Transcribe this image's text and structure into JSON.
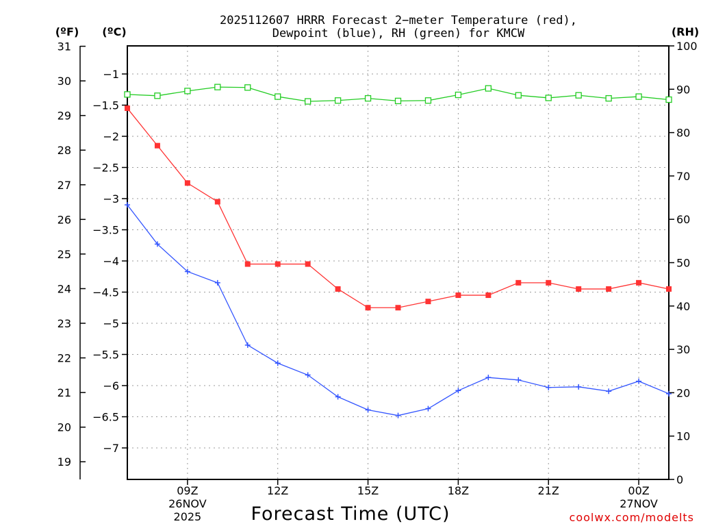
{
  "chart_data": {
    "type": "line",
    "title": "2025112607 HRRR Forecast 2−meter Temperature (red),",
    "subtitle": "Dewpoint (blue), RH (green) for KMCW",
    "xlabel": "Forecast Time (UTC)",
    "credit": "coolwx.com/modelts",
    "units": {
      "fahrenheit": "(ºF)",
      "celsius": "(ºC)",
      "rh": "(RH)"
    },
    "hours": [
      7,
      8,
      9,
      10,
      11,
      12,
      13,
      14,
      15,
      16,
      17,
      18,
      19,
      20,
      21,
      22,
      23,
      24,
      25
    ],
    "x_ticks": [
      {
        "hour": 9,
        "label": "09Z",
        "date": "26NOV",
        "year": "2025"
      },
      {
        "hour": 12,
        "label": "12Z"
      },
      {
        "hour": 15,
        "label": "15Z"
      },
      {
        "hour": 18,
        "label": "18Z"
      },
      {
        "hour": 21,
        "label": "21Z"
      },
      {
        "hour": 24,
        "label": "00Z",
        "date": "27NOV"
      }
    ],
    "xlim": [
      7,
      25
    ],
    "y_celsius": {
      "lim": [
        -7.5,
        -0.5
      ],
      "ticks": [
        -1,
        -1.5,
        -2,
        -2.5,
        -3,
        -3.5,
        -4,
        -4.5,
        -5,
        -5.5,
        -6,
        -6.5,
        -7
      ],
      "tick_labels": [
        "−1",
        "−1.5",
        "−2",
        "−2.5",
        "−3",
        "−3.5",
        "−4",
        "−4.5",
        "−5",
        "−5.5",
        "−6",
        "−6.5",
        "−7"
      ]
    },
    "y_fahrenheit": {
      "ticks": [
        19,
        20,
        21,
        22,
        23,
        24,
        25,
        26,
        27,
        28,
        29,
        30,
        31
      ],
      "tick_labels": [
        "19",
        "20",
        "21",
        "22",
        "23",
        "24",
        "25",
        "26",
        "27",
        "28",
        "29",
        "30",
        "31"
      ]
    },
    "y_rh": {
      "lim": [
        0,
        100
      ],
      "ticks": [
        0,
        10,
        20,
        30,
        40,
        50,
        60,
        70,
        80,
        90,
        100
      ],
      "tick_labels": [
        "0",
        "10",
        "20",
        "30",
        "40",
        "50",
        "60",
        "70",
        "80",
        "90",
        "100"
      ]
    },
    "series": [
      {
        "name": "Temperature",
        "axis": "celsius",
        "color": "#ff3333",
        "marker": "filled-square",
        "values": [
          -1.55,
          -2.15,
          -2.75,
          -3.05,
          -4.05,
          -4.05,
          -4.05,
          -4.45,
          -4.75,
          -4.75,
          -4.65,
          -4.55,
          -4.55,
          -4.35,
          -4.35,
          -4.45,
          -4.45,
          -4.35,
          -4.45
        ]
      },
      {
        "name": "Dewpoint",
        "axis": "celsius",
        "color": "#3355ff",
        "marker": "plus",
        "values": [
          -3.1,
          -3.73,
          -4.17,
          -4.35,
          -5.35,
          -5.64,
          -5.83,
          -6.18,
          -6.39,
          -6.48,
          -6.37,
          -6.08,
          -5.87,
          -5.91,
          -6.03,
          -6.02,
          -6.09,
          -5.93,
          -6.13
        ]
      },
      {
        "name": "RH",
        "axis": "rh",
        "color": "#22cc22",
        "marker": "open-square",
        "values": [
          88.8,
          88.5,
          89.6,
          90.5,
          90.4,
          88.3,
          87.2,
          87.4,
          87.9,
          87.3,
          87.4,
          88.7,
          90.2,
          88.6,
          88.0,
          88.6,
          87.9,
          88.3,
          87.6
        ]
      }
    ]
  }
}
